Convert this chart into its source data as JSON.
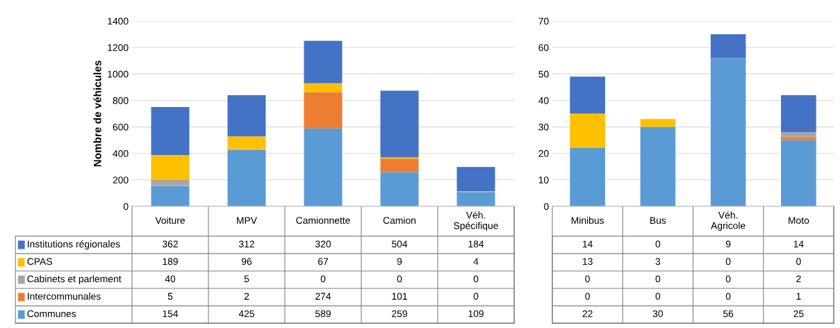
{
  "chart_data": [
    {
      "type": "bar",
      "stacked": true,
      "ylabel": "Nombre de véhicules",
      "categories": [
        "Voiture",
        "MPV",
        "Camionnette",
        "Camion",
        "Véh.\nSpécifique"
      ],
      "ylim": [
        0,
        1400
      ],
      "yticks": [
        0,
        200,
        400,
        600,
        800,
        1000,
        1200,
        1400
      ],
      "grid": "y",
      "legend": "bottom",
      "data_labels": true,
      "series": [
        {
          "name": "Communes",
          "color": "#5b9bd5",
          "values": [
            154,
            425,
            589,
            259,
            109
          ]
        },
        {
          "name": "Intercommunales",
          "color": "#ed7d31",
          "values": [
            5,
            2,
            274,
            101,
            0
          ]
        },
        {
          "name": "Cabinets et parlement",
          "color": "#a5a5a5",
          "values": [
            40,
            5,
            0,
            0,
            0
          ]
        },
        {
          "name": "CPAS",
          "color": "#ffc000",
          "values": [
            189,
            96,
            67,
            9,
            4
          ]
        },
        {
          "name": "Institutions régionales",
          "color": "#4472c4",
          "values": [
            362,
            312,
            320,
            504,
            184
          ]
        }
      ]
    },
    {
      "type": "bar",
      "stacked": true,
      "categories": [
        "Minibus",
        "Bus",
        "Véh.\nAgricole",
        "Moto"
      ],
      "ylim": [
        0,
        70
      ],
      "yticks": [
        0,
        10,
        20,
        30,
        40,
        50,
        60,
        70
      ],
      "grid": "y",
      "data_labels": true,
      "series": [
        {
          "color": "#5b9bd5",
          "values": [
            22,
            30,
            56,
            25
          ]
        },
        {
          "color": "#ed7d31",
          "values": [
            0,
            0,
            0,
            1
          ]
        },
        {
          "color": "#a5a5a5",
          "values": [
            0,
            0,
            0,
            2
          ]
        },
        {
          "color": "#ffc000",
          "values": [
            13,
            3,
            0,
            0
          ]
        },
        {
          "color": "#4472c4",
          "values": [
            14,
            0,
            9,
            14
          ]
        }
      ]
    }
  ]
}
